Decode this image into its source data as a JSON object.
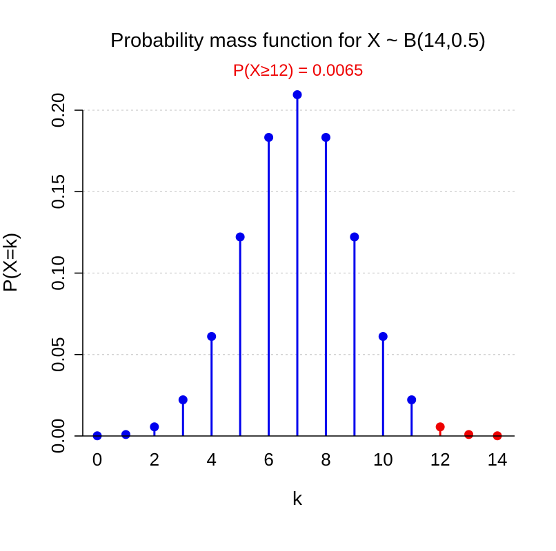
{
  "chart_data": {
    "type": "bar",
    "title": "Probability mass function for X ~ B(14,0.5)",
    "subtitle": "P(X≥12)  =  0.0065",
    "xlabel": "k",
    "ylabel": "P(X=k)",
    "x": [
      0,
      1,
      2,
      3,
      4,
      5,
      6,
      7,
      8,
      9,
      10,
      11,
      12,
      13,
      14
    ],
    "values": [
      0.0001,
      0.0009,
      0.0056,
      0.0222,
      0.0611,
      0.1222,
      0.1833,
      0.2095,
      0.1833,
      0.1222,
      0.0611,
      0.0222,
      0.0056,
      0.0009,
      0.0001
    ],
    "highlight_from_k": 12,
    "xlim": [
      0,
      14
    ],
    "ylim": [
      0,
      0.21
    ],
    "x_ticks": [
      0,
      2,
      4,
      6,
      8,
      10,
      12,
      14
    ],
    "y_ticks": [
      0.0,
      0.05,
      0.1,
      0.15,
      0.2
    ],
    "y_tick_labels": [
      "0.00",
      "0.05",
      "0.10",
      "0.15",
      "0.20"
    ],
    "grid": "horizontal dotted",
    "colors": {
      "main": "#0000ee",
      "highlight": "#ee0000",
      "subtitle": "#ee0000",
      "grid": "#cccccc"
    }
  }
}
